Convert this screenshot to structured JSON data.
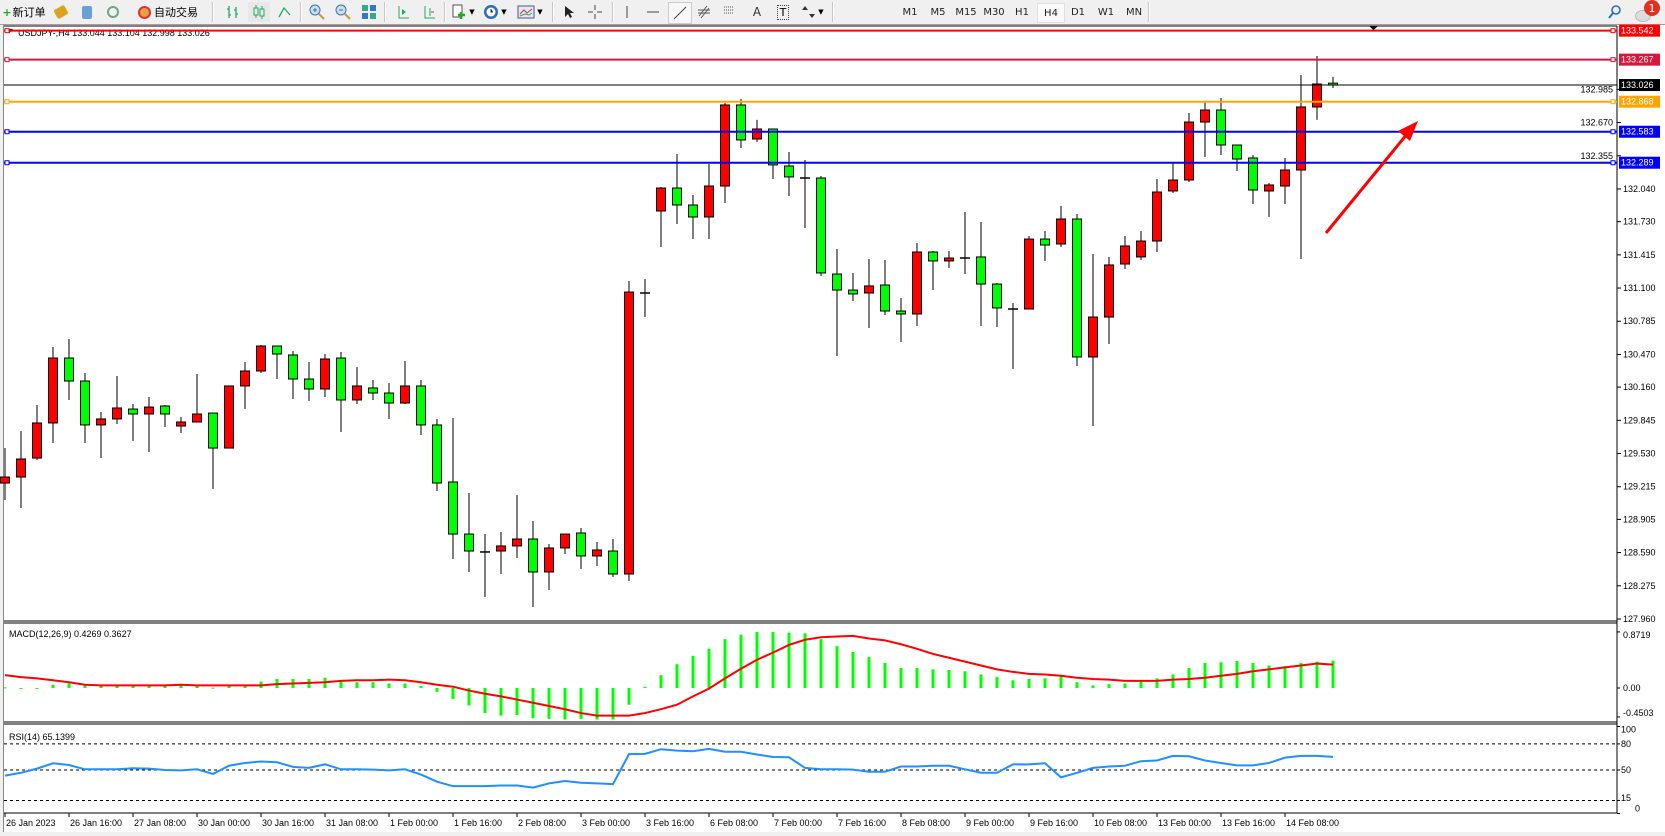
{
  "toolbar": {
    "new_order_label": "新订单",
    "autotrade_label": "自动交易",
    "icons": [
      "new-order-icon",
      "market-watch-icon",
      "navigator-icon",
      "signals-icon",
      "autotrade-icon",
      "bar-chart-icon",
      "candlestick-icon",
      "line-chart-icon",
      "zoom-in-icon",
      "zoom-out-icon",
      "tile-windows-icon",
      "auto-scroll-icon",
      "chart-shift-icon",
      "indicators-icon",
      "periods-icon",
      "templates-icon",
      "cursor-icon",
      "crosshair-icon",
      "vertical-line-icon",
      "horizontal-line-icon",
      "trendline-icon",
      "fibonacci-icon",
      "fibo-channel-icon",
      "text-icon",
      "text-label-icon",
      "arrows-icon",
      "search-icon",
      "notification-icon"
    ],
    "text_tool": "A",
    "text_label_tool": "T",
    "timeframes": [
      "M1",
      "M5",
      "M15",
      "M30",
      "H1",
      "H4",
      "D1",
      "W1",
      "MN"
    ],
    "active_timeframe": "H4",
    "notification_count": "1"
  },
  "chart": {
    "header": "USDJPY-,H4  133.044 133.104 132.998 133.026",
    "colors": {
      "bull": "#ff0000",
      "bear": "#00ff00",
      "macd_hist": "#00ff00",
      "macd_signal": "#ff0000",
      "rsi": "#1e90ff",
      "arrow": "#ff0000"
    },
    "price_ticks": [
      "132.985",
      "132.670",
      "132.355",
      "132.040",
      "131.730",
      "131.415",
      "131.100",
      "130.785",
      "130.470",
      "130.160",
      "129.845",
      "129.530",
      "129.215",
      "128.905",
      "128.590",
      "128.275",
      "127.960"
    ],
    "current_price": {
      "value": "133.026",
      "color": "#000000"
    },
    "levels": [
      {
        "value": "133.542",
        "color": "#ff0000"
      },
      {
        "value": "133.267",
        "color": "#dc143c"
      },
      {
        "value": "132.868",
        "color": "#ffa500"
      },
      {
        "value": "132.583",
        "color": "#0000ff"
      },
      {
        "value": "132.289",
        "color": "#0000ff"
      }
    ],
    "time_labels": [
      "26 Jan 2023",
      "26 Jan 16:00",
      "27 Jan 08:00",
      "30 Jan 00:00",
      "30 Jan 16:00",
      "31 Jan 08:00",
      "1 Feb 00:00",
      "1 Feb 16:00",
      "2 Feb 08:00",
      "3 Feb 00:00",
      "3 Feb 16:00",
      "6 Feb 08:00",
      "7 Feb 00:00",
      "7 Feb 16:00",
      "8 Feb 08:00",
      "9 Feb 00:00",
      "9 Feb 16:00",
      "10 Feb 08:00",
      "13 Feb 00:00",
      "13 Feb 16:00",
      "14 Feb 08:00"
    ]
  },
  "chart_data": {
    "type": "candlestick",
    "ohlc_fields": [
      "open",
      "high",
      "low",
      "close"
    ],
    "candles": [
      [
        129.25,
        129.582,
        129.089,
        129.307
      ],
      [
        129.307,
        129.744,
        129.013,
        129.478
      ],
      [
        129.487,
        129.99,
        129.468,
        129.82
      ],
      [
        129.82,
        130.541,
        129.63,
        130.436
      ],
      [
        130.436,
        130.617,
        130.038,
        130.218
      ],
      [
        130.218,
        130.294,
        129.63,
        129.801
      ],
      [
        129.801,
        129.924,
        129.487,
        129.858
      ],
      [
        129.858,
        130.266,
        129.81,
        129.962
      ],
      [
        129.952,
        130.0,
        129.649,
        129.905
      ],
      [
        129.905,
        130.066,
        129.544,
        129.971
      ],
      [
        129.981,
        129.99,
        129.782,
        129.905
      ],
      [
        129.791,
        129.877,
        129.725,
        129.829
      ],
      [
        129.829,
        130.284,
        129.829,
        129.905
      ],
      [
        129.914,
        129.914,
        129.193,
        129.582
      ],
      [
        129.582,
        130.171,
        129.582,
        130.171
      ],
      [
        130.171,
        130.398,
        129.952,
        130.313
      ],
      [
        130.313,
        130.56,
        130.294,
        130.55
      ],
      [
        130.55,
        130.55,
        130.237,
        130.474
      ],
      [
        130.465,
        130.503,
        130.047,
        130.237
      ],
      [
        130.237,
        130.398,
        130.028,
        130.142
      ],
      [
        130.142,
        130.474,
        130.066,
        130.427
      ],
      [
        130.436,
        130.493,
        129.734,
        130.038
      ],
      [
        130.038,
        130.351,
        130.0,
        130.171
      ],
      [
        130.152,
        130.228,
        130.038,
        130.104
      ],
      [
        130.104,
        130.199,
        129.858,
        130.009
      ],
      [
        130.009,
        130.408,
        130.0,
        130.171
      ],
      [
        130.171,
        130.228,
        129.706,
        129.801
      ],
      [
        129.801,
        129.858,
        129.174,
        129.25
      ],
      [
        129.26,
        129.867,
        128.529,
        128.766
      ],
      [
        128.766,
        129.155,
        128.406,
        128.605
      ],
      [
        128.596,
        128.766,
        128.169,
        128.596
      ],
      [
        128.605,
        128.785,
        128.387,
        128.653
      ],
      [
        128.653,
        129.136,
        128.539,
        128.719
      ],
      [
        128.719,
        128.89,
        128.074,
        128.406
      ],
      [
        128.406,
        128.672,
        128.235,
        128.634
      ],
      [
        128.634,
        128.766,
        128.577,
        128.766
      ],
      [
        128.776,
        128.823,
        128.434,
        128.558
      ],
      [
        128.558,
        128.691,
        128.463,
        128.615
      ],
      [
        128.605,
        128.719,
        128.358,
        128.387
      ],
      [
        128.387,
        131.167,
        128.32,
        131.062
      ],
      [
        131.053,
        131.186,
        130.825,
        131.053
      ],
      [
        131.831,
        132.059,
        131.489,
        132.049
      ],
      [
        132.049,
        132.372,
        131.708,
        131.888
      ],
      [
        131.888,
        131.983,
        131.565,
        131.774
      ],
      [
        131.774,
        132.277,
        131.565,
        132.068
      ],
      [
        132.068,
        132.856,
        131.907,
        132.837
      ],
      [
        132.837,
        132.894,
        132.429,
        132.505
      ],
      [
        132.514,
        132.695,
        132.486,
        132.609
      ],
      [
        132.609,
        132.609,
        132.135,
        132.268
      ],
      [
        132.258,
        132.391,
        131.973,
        132.154
      ],
      [
        132.144,
        132.315,
        131.67,
        132.144
      ],
      [
        132.144,
        132.163,
        131.214,
        131.243
      ],
      [
        131.233,
        131.471,
        130.455,
        131.081
      ],
      [
        131.081,
        131.243,
        130.977,
        131.044
      ],
      [
        131.053,
        131.376,
        130.721,
        131.12
      ],
      [
        131.129,
        131.366,
        130.844,
        130.882
      ],
      [
        130.882,
        131.006,
        130.588,
        130.854
      ],
      [
        130.854,
        131.527,
        130.74,
        131.442
      ],
      [
        131.442,
        131.452,
        131.081,
        131.357
      ],
      [
        131.357,
        131.452,
        131.29,
        131.385
      ],
      [
        131.385,
        131.822,
        131.233,
        131.385
      ],
      [
        131.395,
        131.727,
        130.74,
        131.138
      ],
      [
        131.138,
        131.148,
        130.73,
        130.911
      ],
      [
        130.901,
        130.958,
        130.332,
        130.901
      ],
      [
        130.901,
        131.594,
        130.901,
        131.565
      ],
      [
        131.565,
        131.641,
        131.357,
        131.508
      ],
      [
        131.518,
        131.879,
        131.489,
        131.755
      ],
      [
        131.755,
        131.803,
        130.36,
        130.446
      ],
      [
        130.446,
        131.423,
        129.791,
        130.825
      ],
      [
        130.825,
        131.395,
        130.569,
        131.319
      ],
      [
        131.328,
        131.594,
        131.281,
        131.499
      ],
      [
        131.395,
        131.641,
        131.366,
        131.546
      ],
      [
        131.546,
        132.135,
        131.442,
        132.011
      ],
      [
        132.021,
        132.286,
        132.002,
        132.125
      ],
      [
        132.125,
        132.761,
        132.106,
        132.675
      ],
      [
        132.675,
        132.865,
        132.343,
        132.789
      ],
      [
        132.789,
        132.903,
        132.362,
        132.457
      ],
      [
        132.457,
        132.457,
        132.211,
        132.324
      ],
      [
        132.334,
        132.362,
        131.897,
        132.03
      ],
      [
        132.021,
        132.097,
        131.774,
        132.078
      ],
      [
        132.068,
        132.334,
        131.897,
        132.22
      ],
      [
        132.22,
        133.121,
        131.376,
        132.818
      ],
      [
        132.818,
        133.302,
        132.695,
        133.036
      ],
      [
        133.044,
        133.104,
        132.998,
        133.026
      ]
    ],
    "price_range": [
      127.96,
      133.542
    ],
    "macd": {
      "label": "MACD(12,26,9) 0.4269 0.3627",
      "range": [
        -0.4503,
        0.8719
      ],
      "range_labels": [
        "0.8719",
        "0.00",
        "-0.4503"
      ],
      "main": [
        0.01,
        -0.01,
        -0.01,
        0.05,
        0.07,
        0.04,
        0.04,
        0.04,
        0.04,
        0.04,
        0.04,
        0.05,
        0.03,
        0.005,
        0.04,
        0.04,
        0.1,
        0.14,
        0.14,
        0.14,
        0.16,
        0.12,
        0.09,
        0.09,
        0.07,
        0.07,
        0.03,
        -0.06,
        -0.17,
        -0.27,
        -0.39,
        -0.43,
        -0.42,
        -0.47,
        -0.48,
        -0.49,
        -0.48,
        -0.49,
        -0.49,
        -0.26,
        0.02,
        0.2,
        0.37,
        0.5,
        0.61,
        0.76,
        0.83,
        0.87,
        0.87,
        0.86,
        0.85,
        0.76,
        0.65,
        0.56,
        0.48,
        0.39,
        0.31,
        0.31,
        0.29,
        0.28,
        0.26,
        0.21,
        0.17,
        0.12,
        0.14,
        0.15,
        0.18,
        0.09,
        0.04,
        0.06,
        0.07,
        0.1,
        0.15,
        0.21,
        0.31,
        0.39,
        0.4,
        0.42,
        0.39,
        0.35,
        0.34,
        0.39,
        0.41,
        0.4269
      ],
      "signal": [
        0.2,
        0.17,
        0.15,
        0.12,
        0.09,
        0.05,
        0.04,
        0.04,
        0.04,
        0.04,
        0.04,
        0.05,
        0.04,
        0.04,
        0.04,
        0.04,
        0.04,
        0.06,
        0.07,
        0.08,
        0.09,
        0.11,
        0.12,
        0.12,
        0.13,
        0.12,
        0.09,
        0.05,
        0.02,
        -0.04,
        -0.09,
        -0.13,
        -0.18,
        -0.23,
        -0.28,
        -0.33,
        -0.39,
        -0.43,
        -0.43,
        -0.43,
        -0.39,
        -0.33,
        -0.26,
        -0.13,
        -0.01,
        0.15,
        0.3,
        0.44,
        0.55,
        0.67,
        0.75,
        0.79,
        0.8,
        0.81,
        0.77,
        0.74,
        0.68,
        0.61,
        0.53,
        0.47,
        0.41,
        0.35,
        0.29,
        0.25,
        0.22,
        0.21,
        0.19,
        0.16,
        0.14,
        0.13,
        0.11,
        0.11,
        0.11,
        0.13,
        0.14,
        0.16,
        0.19,
        0.22,
        0.26,
        0.29,
        0.32,
        0.35,
        0.38,
        0.3627
      ]
    },
    "rsi": {
      "label": "RSI(14) 65.1399",
      "levels": [
        "100",
        "80",
        "50",
        "15",
        "0"
      ],
      "values": [
        43.5,
        46.8,
        51.6,
        57.7,
        55.7,
        50.8,
        50.8,
        50.8,
        52,
        51.6,
        50,
        49.6,
        50.8,
        45.5,
        54.9,
        58.1,
        59.7,
        58.9,
        53.6,
        52.4,
        56.5,
        50.8,
        50.8,
        50.4,
        49.6,
        50.8,
        44.7,
        36.6,
        31.4,
        31.4,
        31.4,
        32.2,
        32.2,
        29.8,
        34.6,
        37.4,
        35.4,
        34.6,
        33.8,
        68.2,
        68.6,
        73.9,
        72.3,
        71.5,
        74.3,
        71,
        71,
        67.8,
        65,
        64.6,
        52.4,
        50.8,
        50.8,
        50.4,
        48,
        48,
        54,
        54,
        54.9,
        54.9,
        50.8,
        46.8,
        46.8,
        56.5,
        56.5,
        57.7,
        41.5,
        46.8,
        52.4,
        54,
        54.9,
        60.1,
        60.9,
        66.2,
        65.8,
        60.9,
        58.1,
        55.3,
        55.3,
        58.1,
        64.2,
        66.2,
        66.2,
        65.14
      ]
    }
  }
}
